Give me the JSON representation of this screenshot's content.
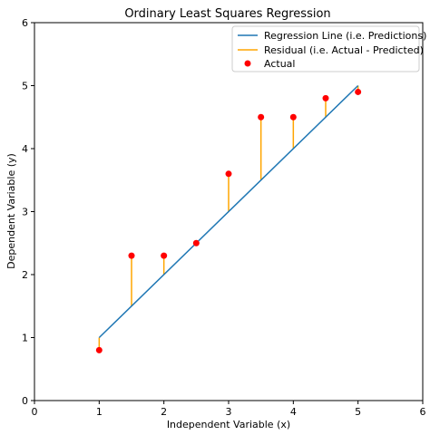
{
  "chart_data": {
    "type": "scatter",
    "title": "Ordinary Least Squares Regression",
    "xlabel": "Independent Variable (x)",
    "ylabel": "Dependent Variable (y)",
    "xlim": [
      0,
      6
    ],
    "ylim": [
      0,
      6
    ],
    "xticks": [
      0,
      1,
      2,
      3,
      4,
      5,
      6
    ],
    "yticks": [
      0,
      1,
      2,
      3,
      4,
      5,
      6
    ],
    "grid": false,
    "legend_position": "top-right",
    "series": [
      {
        "name": "Regression Line (i.e. Predictions)",
        "kind": "line",
        "color": "#1f77b4",
        "x": [
          1,
          5
        ],
        "y": [
          1.0,
          5.0
        ]
      },
      {
        "name": "Residual (i.e. Actual - Predicted)",
        "kind": "residual",
        "color": "#ffa500"
      },
      {
        "name": "Actual",
        "kind": "scatter",
        "color": "#ff0000",
        "x": [
          1,
          1.5,
          2,
          2.5,
          3,
          3.5,
          4,
          4.5,
          5
        ],
        "y": [
          0.8,
          2.3,
          2.3,
          2.5,
          3.6,
          4.5,
          4.5,
          4.8,
          4.9
        ]
      }
    ],
    "predicted": [
      1.0,
      1.5,
      2.0,
      2.5,
      3.0,
      3.5,
      4.0,
      4.5,
      5.0
    ]
  }
}
